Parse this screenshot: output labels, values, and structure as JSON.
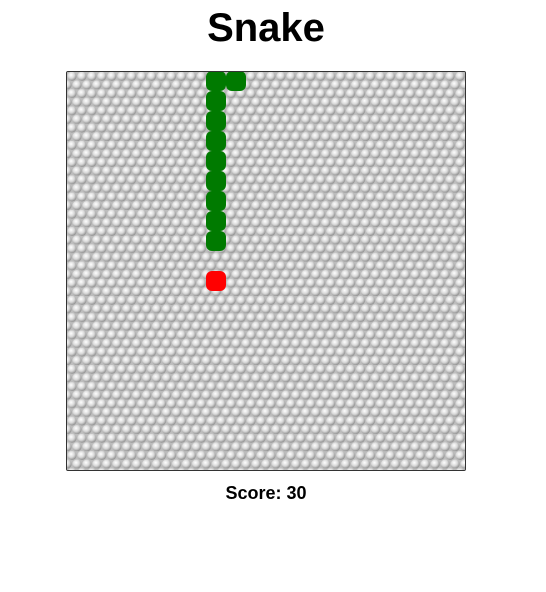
{
  "title": "Snake",
  "score_label": "Score: 30",
  "grid": {
    "cols": 20,
    "rows": 20
  },
  "colors": {
    "snake": "#007a00",
    "food": "#ff0000",
    "board_background": "#cfcfcf",
    "board_border": "#333333"
  },
  "snake": [
    {
      "col": 7,
      "row": 0
    },
    {
      "col": 8,
      "row": 0
    },
    {
      "col": 7,
      "row": 1
    },
    {
      "col": 7,
      "row": 2
    },
    {
      "col": 7,
      "row": 3
    },
    {
      "col": 7,
      "row": 4
    },
    {
      "col": 7,
      "row": 5
    },
    {
      "col": 7,
      "row": 6
    },
    {
      "col": 7,
      "row": 7
    },
    {
      "col": 7,
      "row": 8
    }
  ],
  "food": {
    "col": 7,
    "row": 10
  }
}
